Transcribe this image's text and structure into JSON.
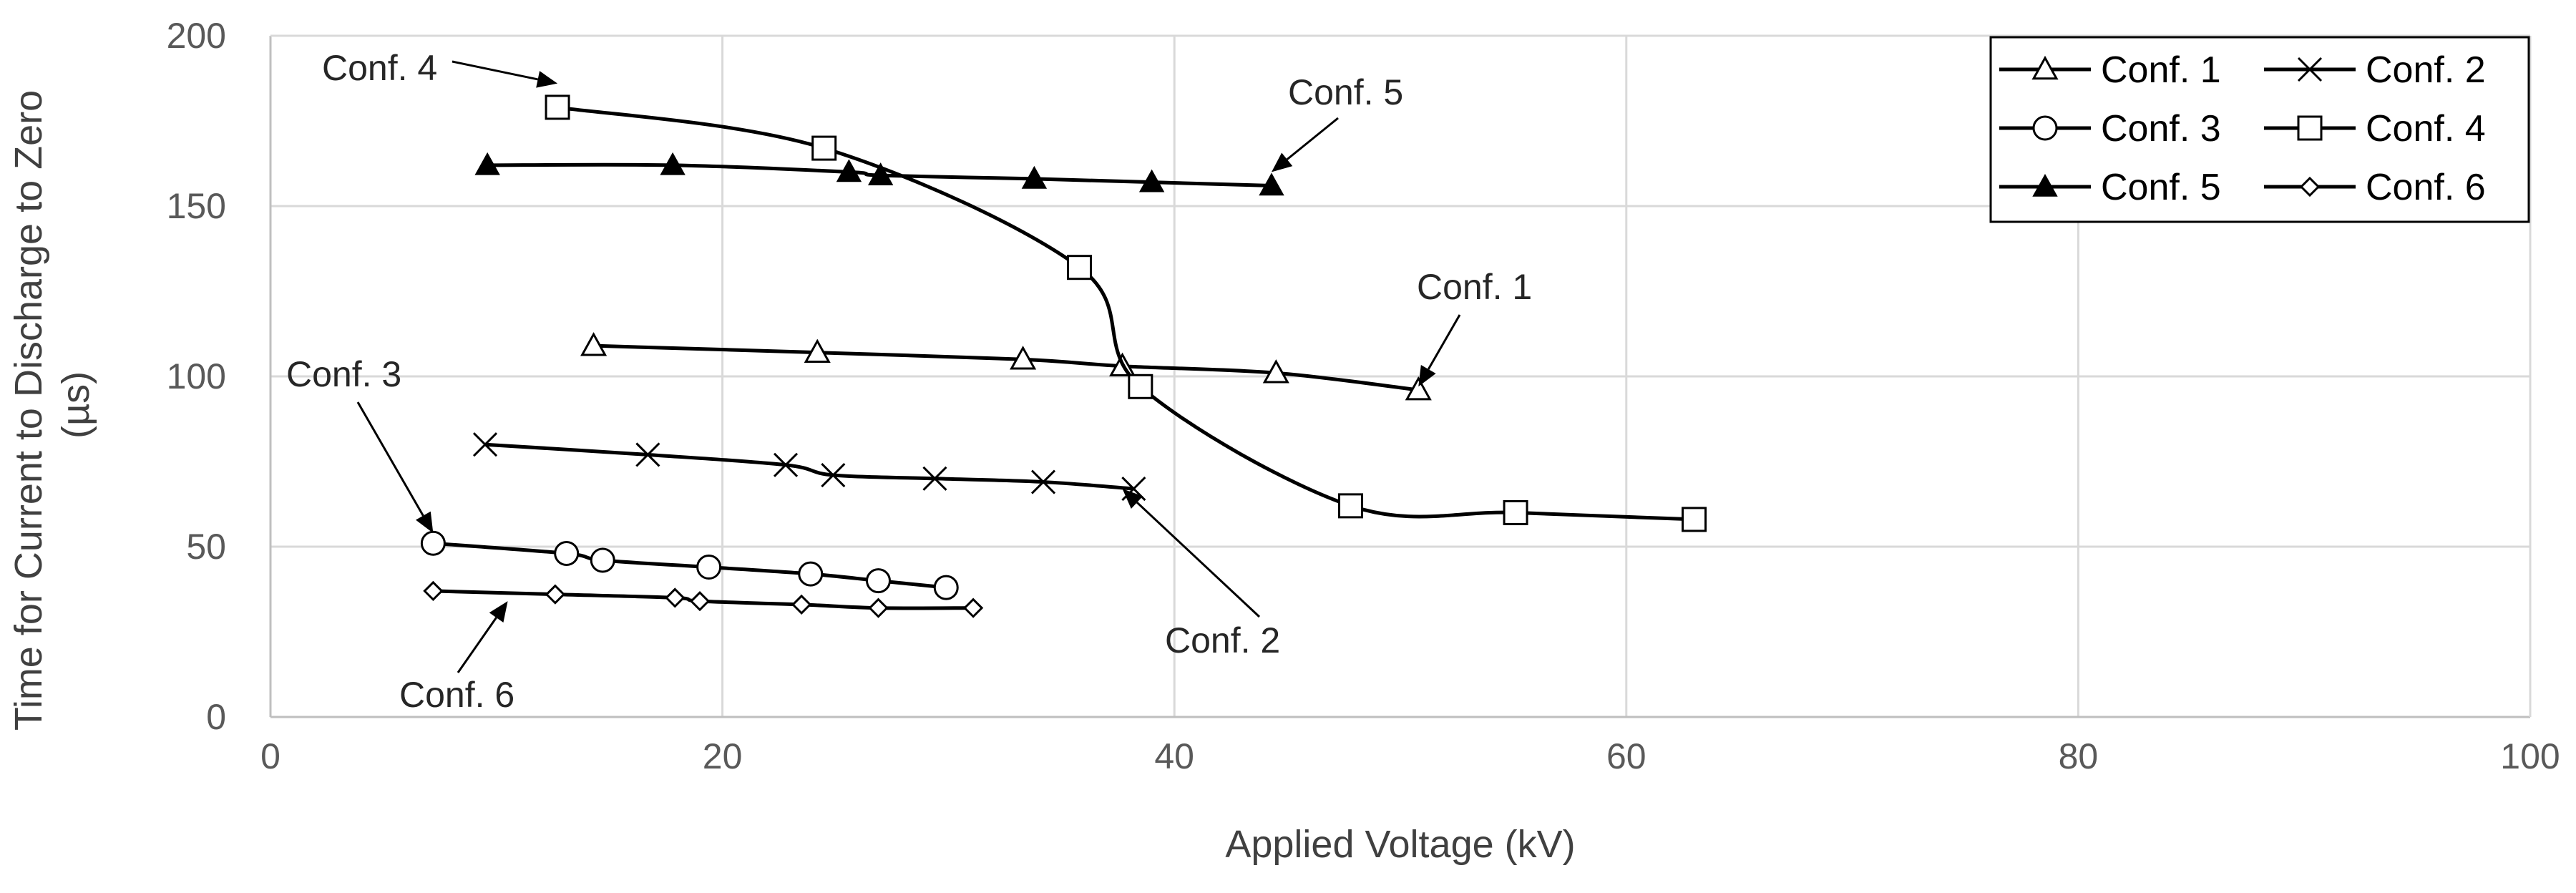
{
  "chart_data": {
    "type": "line",
    "title": "",
    "xlabel": "Applied Voltage (kV)",
    "ylabel_lines": [
      "Time for Current to Discharge to Zero",
      "(µs)"
    ],
    "xlim": [
      0,
      100
    ],
    "ylim": [
      0,
      200
    ],
    "xticks": [
      0,
      20,
      40,
      60,
      80,
      100
    ],
    "yticks": [
      0,
      50,
      100,
      150,
      200
    ],
    "grid": true,
    "legend_position": "top-right",
    "series": [
      {
        "name": "Conf. 1",
        "marker": "triangle-open",
        "x": [
          14.3,
          24.2,
          33.3,
          37.7,
          44.5,
          50.8
        ],
        "y": [
          109,
          107,
          105,
          103,
          101,
          96
        ]
      },
      {
        "name": "Conf. 2",
        "marker": "x",
        "x": [
          9.5,
          16.7,
          22.8,
          24.9,
          29.4,
          34.2,
          38.2
        ],
        "y": [
          80,
          77,
          74,
          71,
          70,
          69,
          67
        ]
      },
      {
        "name": "Conf. 3",
        "marker": "circle-open",
        "x": [
          7.2,
          13.1,
          14.7,
          19.4,
          23.9,
          26.9,
          29.9
        ],
        "y": [
          51,
          48,
          46,
          44,
          42,
          40,
          38
        ]
      },
      {
        "name": "Conf. 4",
        "marker": "square-open",
        "x": [
          12.7,
          24.5,
          35.8,
          38.5,
          47.8,
          55.1,
          63.0
        ],
        "y": [
          179,
          167,
          132,
          97,
          62,
          60,
          58
        ]
      },
      {
        "name": "Conf. 5",
        "marker": "triangle-filled",
        "x": [
          9.6,
          17.8,
          25.6,
          27.0,
          33.8,
          39.0,
          44.3
        ],
        "y": [
          162,
          162,
          160,
          159,
          158,
          157,
          156
        ]
      },
      {
        "name": "Conf. 6",
        "marker": "diamond-open",
        "x": [
          7.2,
          12.6,
          17.9,
          19.0,
          23.5,
          26.9,
          31.1
        ],
        "y": [
          37,
          36,
          35,
          34,
          33,
          32,
          32
        ]
      }
    ],
    "annotations": [
      {
        "text": "Conf. 4",
        "target": [
          12.7,
          186
        ]
      },
      {
        "text": "Conf. 5",
        "target": [
          44.3,
          160
        ]
      },
      {
        "text": "Conf. 1",
        "target": [
          50.8,
          97
        ]
      },
      {
        "text": "Conf. 3",
        "target": [
          7.2,
          54
        ]
      },
      {
        "text": "Conf. 2",
        "target": [
          37.7,
          67
        ]
      },
      {
        "text": "Conf. 6",
        "target": [
          10.5,
          34
        ]
      }
    ]
  }
}
